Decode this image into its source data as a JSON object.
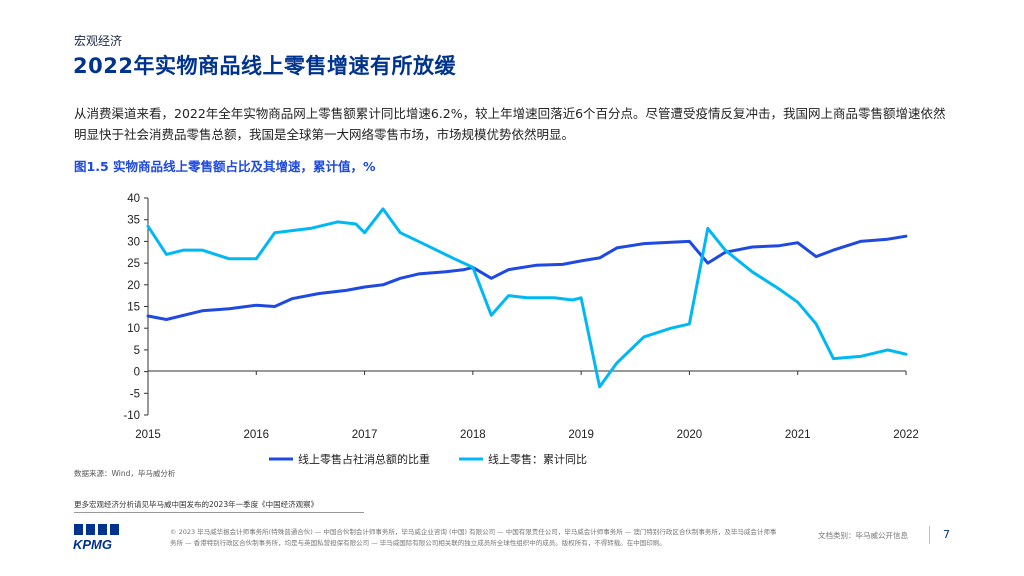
{
  "header": {
    "section": "宏观经济",
    "title": "2022年实物商品线上零售增速有所放缓"
  },
  "body_text": "从消费渠道来看，2022年全年实物商品网上零售额累计同比增速6.2%，较上年增速回落近6个百分点。尽管遭受疫情反复冲击，我国网上商品零售额增速依然明显快于社会消费品零售总额，我国是全球第一大网络零售市场，市场规模优势依然明显。",
  "chart_data": {
    "type": "line",
    "title": "图1.5 实物商品线上零售额占比及其增速，累计值，%",
    "xlabel": "",
    "ylabel": "",
    "ylim": [
      -10,
      40
    ],
    "yticks": [
      "-10",
      "-5",
      "0",
      "5",
      "10",
      "15",
      "20",
      "25",
      "30",
      "35",
      "40"
    ],
    "xticks": [
      "2015",
      "2016",
      "2017",
      "2018",
      "2019",
      "2020",
      "2021",
      "2022"
    ],
    "xlim": [
      2015.0,
      2022.0
    ],
    "legend_position": "bottom",
    "grid": false,
    "series": [
      {
        "name": "线上零售占社消总额的比重",
        "color": "#1E49E2",
        "x": [
          2015.0,
          2015.17,
          2015.5,
          2015.75,
          2016.0,
          2016.17,
          2016.33,
          2016.58,
          2016.83,
          2017.0,
          2017.17,
          2017.33,
          2017.5,
          2017.75,
          2017.92,
          2018.0,
          2018.17,
          2018.33,
          2018.58,
          2018.83,
          2019.0,
          2019.17,
          2019.33,
          2019.58,
          2019.83,
          2020.0,
          2020.17,
          2020.33,
          2020.58,
          2020.83,
          2021.0,
          2021.17,
          2021.33,
          2021.58,
          2021.83,
          2022.0
        ],
        "y": [
          12.8,
          12.0,
          14.0,
          14.5,
          15.3,
          15.0,
          16.8,
          18.0,
          18.7,
          19.5,
          20.0,
          21.5,
          22.5,
          23.0,
          23.5,
          24.0,
          21.5,
          23.5,
          24.5,
          24.7,
          25.5,
          26.2,
          28.5,
          29.5,
          29.8,
          30.0,
          25.0,
          27.5,
          28.7,
          29.0,
          29.7,
          26.5,
          28.0,
          30.0,
          30.5,
          31.2
        ]
      },
      {
        "name": "线上零售：累计同比",
        "color": "#00B8F5",
        "x": [
          2015.0,
          2015.17,
          2015.33,
          2015.5,
          2015.75,
          2015.92,
          2016.0,
          2016.17,
          2016.5,
          2016.75,
          2016.92,
          2017.0,
          2017.17,
          2017.33,
          2017.58,
          2017.83,
          2018.0,
          2018.17,
          2018.33,
          2018.5,
          2018.75,
          2018.92,
          2019.0,
          2019.17,
          2019.33,
          2019.58,
          2019.83,
          2020.0,
          2020.17,
          2020.33,
          2020.58,
          2020.83,
          2021.0,
          2021.17,
          2021.33,
          2021.58,
          2021.83,
          2022.0
        ],
        "y": [
          33.5,
          27.0,
          28.0,
          28.0,
          26.0,
          26.0,
          26.0,
          32.0,
          33.0,
          34.5,
          34.0,
          32.0,
          37.5,
          32.0,
          29.0,
          26.0,
          24.0,
          13.0,
          17.5,
          17.0,
          17.0,
          16.5,
          17.0,
          -3.5,
          2.0,
          8.0,
          10.0,
          11.0,
          33.0,
          28.0,
          23.0,
          19.0,
          16.0,
          11.0,
          3.0,
          3.5,
          5.0,
          4.0
        ]
      }
    ]
  },
  "footer": {
    "source": "数据来源：Wind，毕马威分析",
    "more_info": "更多宏观经济分析请见毕马威中国发布的2023年一季度《中国经济观察》",
    "logo_text": "KPMG",
    "copyright": "© 2023 毕马威华振会计师事务所(特殊普通合伙) — 中国合伙制会计师事务所，毕马威企业咨询 (中国) 有限公司 — 中国有限责任公司，毕马威会计师事务所 — 澳门特别行政区合伙制事务所，及毕马威会计师事务所 — 香港特别行政区合伙制事务所，均是与英国私营担保有限公司 — 毕马威国际有限公司相关联的独立成员所全球性组织中的成员。版权所有，不得转载。在中国印刷。",
    "doc_class": "文档类别：毕马威公开信息",
    "page_number": "7"
  },
  "colors": {
    "title": "#00338D",
    "figure_title": "#1E49E2",
    "series_dark": "#1E49E2",
    "series_light": "#00B8F5"
  }
}
